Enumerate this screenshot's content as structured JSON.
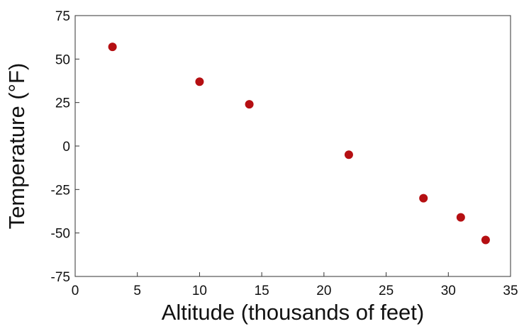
{
  "chart_data": {
    "type": "scatter",
    "title": "",
    "xlabel": "Altitude (thousands of feet)",
    "ylabel": "Temperature (°F)",
    "xlim": [
      0,
      35
    ],
    "ylim": [
      -75,
      75
    ],
    "xticks": [
      0,
      5,
      10,
      15,
      20,
      25,
      30,
      35
    ],
    "yticks": [
      75,
      50,
      25,
      0,
      -25,
      -50,
      -75
    ],
    "xtick_labels": [
      "0",
      "5",
      "10",
      "15",
      "20",
      "25",
      "30",
      "35"
    ],
    "ytick_labels": [
      "75",
      "50",
      "25",
      "0",
      "-25",
      "-50",
      "-75"
    ],
    "grid": false,
    "series": [
      {
        "x": [
          3,
          10,
          14,
          22,
          28,
          31,
          33
        ],
        "y": [
          57,
          37,
          24,
          -5,
          -30,
          -41,
          -54
        ],
        "color": "#b50f12"
      }
    ]
  }
}
